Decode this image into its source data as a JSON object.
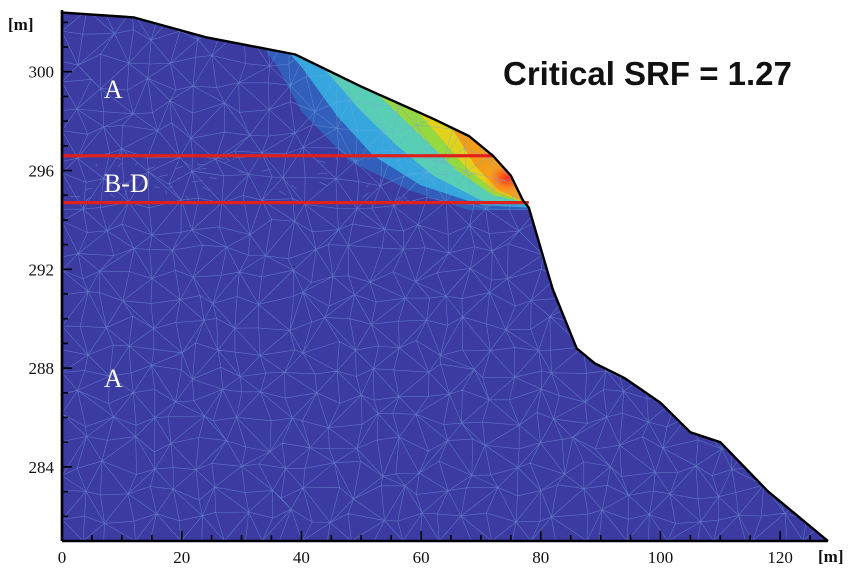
{
  "chart_data": {
    "type": "contour",
    "annotation": "Critical SRF = 1.27",
    "xunit": "[m]",
    "yunit": "[m]",
    "xlim": [
      0,
      128
    ],
    "ylim": [
      281,
      302.5
    ],
    "x_ticks": [
      "0",
      "20",
      "40",
      "60",
      "80",
      "100",
      "120"
    ],
    "y_ticks": [
      "284",
      "288",
      "292",
      "296",
      "300"
    ],
    "x_tick_values": [
      0,
      20,
      40,
      60,
      80,
      100,
      120
    ],
    "y_tick_values": [
      284,
      288,
      292,
      296,
      300
    ],
    "layers": [
      {
        "label": "A",
        "x": 7,
        "y": 299.3
      },
      {
        "label": "B-D",
        "x": 7,
        "y": 295.5
      },
      {
        "label": "A",
        "x": 7,
        "y": 287.6
      }
    ],
    "layer_boundaries": [
      {
        "y": 296.6,
        "x_from": 0,
        "x_to": 72
      },
      {
        "y": 294.7,
        "x_from": 0,
        "x_to": 78
      }
    ],
    "slope_profile": [
      [
        0,
        302.4
      ],
      [
        12,
        302.2
      ],
      [
        24,
        301.4
      ],
      [
        39,
        300.7
      ],
      [
        50,
        299.4
      ],
      [
        62,
        298.1
      ],
      [
        68,
        297.4
      ],
      [
        72,
        296.6
      ],
      [
        75,
        295.8
      ],
      [
        77,
        294.8
      ],
      [
        78,
        294.5
      ],
      [
        82,
        291.2
      ],
      [
        86,
        288.8
      ],
      [
        89,
        288.2
      ],
      [
        94,
        287.6
      ],
      [
        100,
        286.6
      ],
      [
        105,
        285.4
      ],
      [
        110,
        285.0
      ],
      [
        118,
        283.0
      ],
      [
        128,
        281
      ]
    ],
    "colors": {
      "background_mesh": "#3a3a9e",
      "mesh_lines": "#7aa4e0",
      "boundary_lines": "#e0201c",
      "outline": "#000000"
    }
  }
}
